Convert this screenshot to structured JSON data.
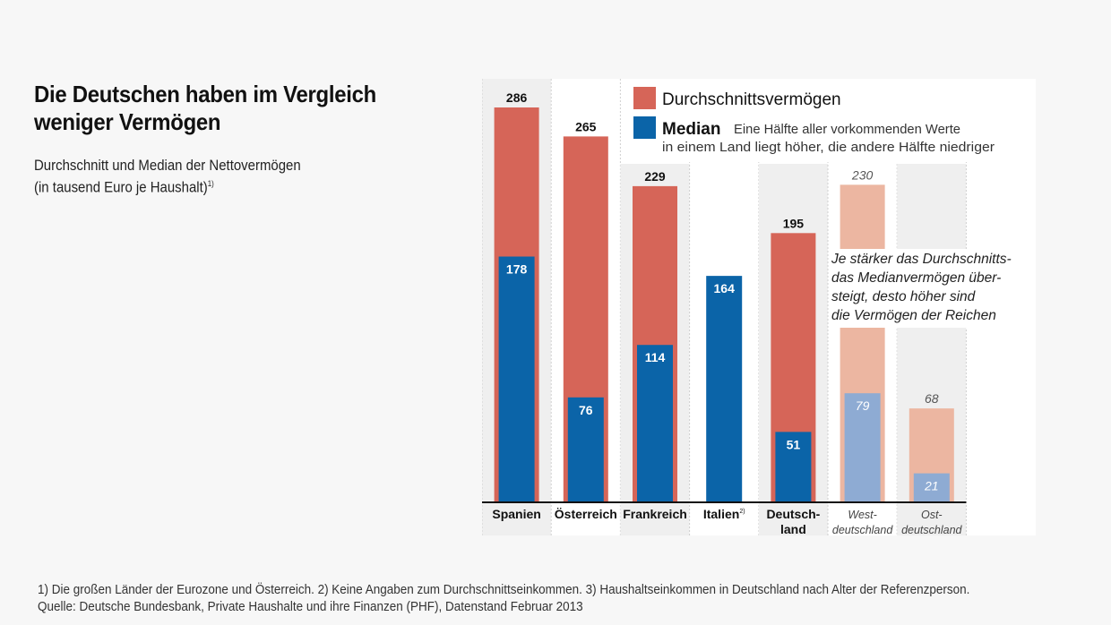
{
  "header": {
    "title": "Die Deutschen haben im Vergleich weniger Vermögen",
    "subtitle_line1": "Durchschnitt und Median der Nettovermögen",
    "subtitle_line2": "(in tausend Euro je Haushalt)",
    "subtitle_sup": "1)"
  },
  "footer": {
    "line1": "1) Die großen Länder der Eurozone und Österreich. 2) Keine Angaben zum Durchschnittseinkommen. 3) Haushaltseinkommen in Deutschland nach Alter der Referenzperson.",
    "line2": "Quelle: Deutsche Bundesbank, Private Haushalte und ihre Finanzen (PHF), Datenstand Februar 2013"
  },
  "colors": {
    "mean": "#d66558",
    "median": "#0b64a8",
    "mean_light": "#ecb6a1",
    "median_light": "#8eabd3",
    "shade": "#efefef"
  },
  "chart_data": {
    "type": "bar",
    "title": "Die Deutschen haben im Vergleich weniger Vermögen",
    "subtitle": "Durchschnitt und Median der Nettovermögen (in tausend Euro je Haushalt)",
    "xlabel": "",
    "ylabel": "tausend Euro je Haushalt",
    "ylim": [
      0,
      286
    ],
    "grid": false,
    "legend_position": "top-right",
    "categories": [
      {
        "line1": "Spanien",
        "line2": "",
        "sup": "",
        "italic": false,
        "light": false
      },
      {
        "line1": "Österreich",
        "line2": "",
        "sup": "",
        "italic": false,
        "light": false
      },
      {
        "line1": "Frankreich",
        "line2": "",
        "sup": "",
        "italic": false,
        "light": false
      },
      {
        "line1": "Italien",
        "line2": "",
        "sup": "2)",
        "italic": false,
        "light": false
      },
      {
        "line1": "Deutsch-",
        "line2": "land",
        "sup": "",
        "italic": false,
        "light": false
      },
      {
        "line1": "West-",
        "line2": "deutschland",
        "sup": "",
        "italic": true,
        "light": true
      },
      {
        "line1": "Ost-",
        "line2": "deutschland",
        "sup": "",
        "italic": true,
        "light": true
      }
    ],
    "series": [
      {
        "name": "Durchschnittsvermögen",
        "values": [
          286,
          265,
          229,
          null,
          195,
          230,
          68
        ]
      },
      {
        "name": "Median",
        "values": [
          178,
          76,
          114,
          164,
          51,
          79,
          21
        ]
      }
    ],
    "legend": [
      {
        "label": "Durchschnittsvermögen",
        "note_line1": "",
        "note_line2": ""
      },
      {
        "label": "Median",
        "note_line1": "Eine Hälfte aller vorkommenden Werte",
        "note_line2": "in einem Land liegt höher, die andere Hälfte niedriger"
      }
    ],
    "annotation": [
      "Je stärker das Durchschnitts-",
      "das Medianvermögen über-",
      "steigt, desto höher sind",
      "die Vermögen der Reichen"
    ]
  }
}
